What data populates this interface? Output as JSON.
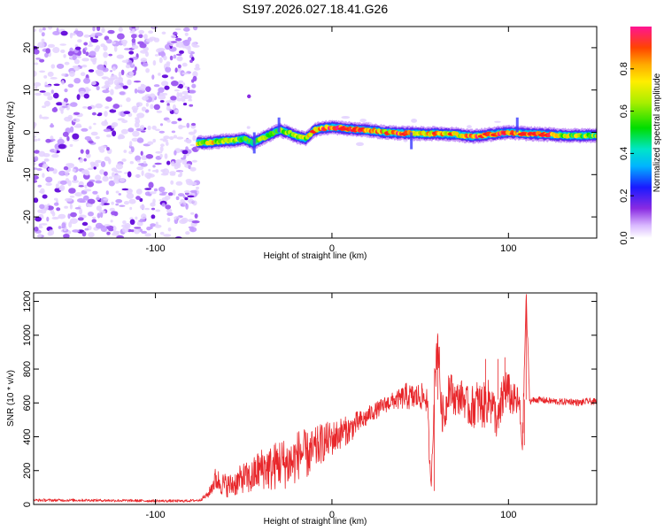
{
  "title": "S197.2026.027.18.41.G26",
  "colors": {
    "snr_line": "#e8262a",
    "noise_dot": "#7b1fe0",
    "background": "#ffffff"
  },
  "chart_data": [
    {
      "type": "heatmap",
      "name": "spectrogram",
      "xlabel": "Height of straight line (km)",
      "ylabel": "Frequency (Hz)",
      "xlim": [
        -169,
        150
      ],
      "ylim": [
        -25,
        25
      ],
      "xticks": [
        -100,
        0,
        100
      ],
      "xtick_labels": [
        "-100",
        "0",
        "100"
      ],
      "yticks": [
        20,
        10,
        0,
        -10,
        -20
      ],
      "ytick_labels": [
        "20",
        "10",
        "0",
        "-10",
        "-20"
      ],
      "noise_region_x": [
        -169,
        -78
      ],
      "signal_start_x": -78,
      "signal_track": {
        "x": [
          -76,
          -70,
          -65,
          -60,
          -55,
          -50,
          -45,
          -40,
          -35,
          -30,
          -25,
          -20,
          -15,
          -10,
          -5,
          0,
          10,
          20,
          30,
          40,
          50,
          60,
          70,
          80,
          90,
          100,
          110,
          120,
          130,
          140,
          150
        ],
        "frequency": [
          -2.5,
          -2.4,
          -2.2,
          -2.0,
          -2.0,
          -1.5,
          -2.5,
          -1.5,
          -0.5,
          0.5,
          0.0,
          -1.0,
          -1.5,
          0.5,
          1.0,
          1.2,
          0.8,
          0.5,
          0.0,
          -0.2,
          -0.3,
          -0.3,
          -0.5,
          -1.0,
          -0.5,
          0.0,
          -0.3,
          -0.5,
          -0.7,
          -0.8,
          -0.7
        ],
        "amplitude": [
          0.6,
          0.75,
          0.7,
          0.75,
          0.65,
          0.5,
          0.45,
          0.55,
          0.5,
          0.55,
          0.6,
          0.7,
          0.65,
          0.75,
          0.85,
          0.9,
          0.95,
          0.8,
          0.75,
          0.9,
          0.7,
          0.8,
          0.7,
          0.85,
          0.9,
          0.85,
          0.9,
          0.95,
          0.7,
          0.6,
          0.55
        ]
      },
      "colorbar": {
        "label": "Normalized spectral amplitude",
        "range": [
          0,
          1
        ],
        "ticks": [
          0.0,
          0.2,
          0.4,
          0.6,
          0.8
        ],
        "tick_labels": [
          "0.0",
          "0.2",
          "0.4",
          "0.6",
          "0.8"
        ]
      }
    },
    {
      "type": "line",
      "name": "snr",
      "xlabel": "Height of straight line (km)",
      "ylabel": "SNR (10 * v/v)",
      "xlim": [
        -169,
        150
      ],
      "ylim": [
        0,
        1250
      ],
      "xticks": [
        -100,
        0,
        100
      ],
      "xtick_labels": [
        "-100",
        "0",
        "100"
      ],
      "yticks": [
        0,
        200,
        400,
        600,
        800,
        1000,
        1200
      ],
      "ytick_labels": [
        "0",
        "200",
        "400",
        "600",
        "800",
        "1000",
        "1200"
      ],
      "series": [
        {
          "name": "SNR",
          "x": [
            -169,
            -140,
            -110,
            -85,
            -75,
            -70,
            -66,
            -62,
            -58,
            -54,
            -50,
            -46,
            -42,
            -38,
            -34,
            -30,
            -26,
            -22,
            -18,
            -14,
            -10,
            -6,
            -2,
            2,
            6,
            10,
            14,
            18,
            22,
            26,
            30,
            34,
            38,
            42,
            46,
            50,
            54,
            56,
            58,
            60,
            62,
            64,
            66,
            70,
            74,
            78,
            82,
            86,
            90,
            94,
            98,
            102,
            106,
            108,
            110,
            112,
            116,
            120,
            125,
            130,
            135,
            140,
            145,
            150
          ],
          "snr": [
            25,
            25,
            22,
            20,
            25,
            60,
            150,
            120,
            110,
            130,
            160,
            150,
            200,
            220,
            210,
            250,
            240,
            250,
            310,
            290,
            320,
            360,
            380,
            400,
            430,
            440,
            480,
            500,
            540,
            560,
            590,
            610,
            620,
            640,
            630,
            640,
            620,
            80,
            680,
            1000,
            550,
            520,
            700,
            620,
            640,
            560,
            600,
            580,
            630,
            470,
            700,
            620,
            600,
            350,
            1230,
            610,
            620,
            615,
            610,
            605,
            610,
            600,
            610,
            605
          ],
          "noise_amplitude": [
            8,
            8,
            8,
            8,
            8,
            20,
            70,
            70,
            70,
            80,
            90,
            100,
            120,
            130,
            140,
            150,
            150,
            150,
            150,
            140,
            130,
            120,
            110,
            100,
            90,
            80,
            70,
            60,
            50,
            50,
            50,
            50,
            60,
            80,
            80,
            80,
            80,
            50,
            120,
            150,
            120,
            100,
            120,
            100,
            100,
            120,
            140,
            140,
            120,
            120,
            150,
            100,
            100,
            80,
            60,
            20,
            20,
            20,
            20,
            20,
            20,
            20,
            20,
            20
          ]
        }
      ]
    }
  ]
}
